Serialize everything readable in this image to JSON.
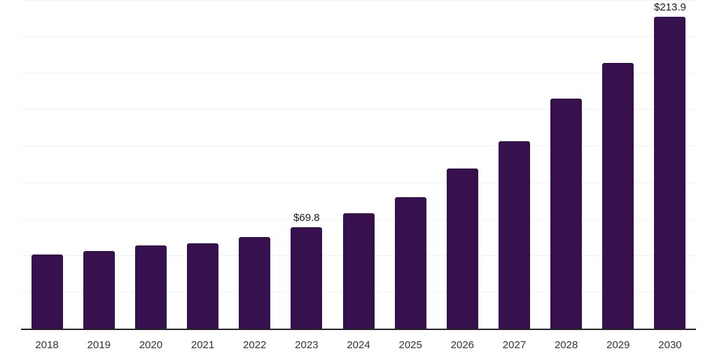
{
  "chart_data": {
    "type": "bar",
    "title": "",
    "xlabel": "",
    "ylabel": "",
    "categories": [
      "2018",
      "2019",
      "2020",
      "2021",
      "2022",
      "2023",
      "2024",
      "2025",
      "2026",
      "2027",
      "2028",
      "2029",
      "2030"
    ],
    "values": [
      50.7,
      53.4,
      57.1,
      58.7,
      63.0,
      69.8,
      79.3,
      90.4,
      109.8,
      128.8,
      157.8,
      182.4,
      213.9
    ],
    "value_labels": {
      "2023": "$69.8",
      "2030": "$213.9"
    },
    "ylim": [
      0,
      225
    ],
    "gridline_step": 25,
    "grid": true,
    "legend_position": "none",
    "colors": {
      "bar": "#37114d",
      "gridline": "#f2f2f2",
      "axis_line": "#262626",
      "value_label": "#1a1a1a",
      "tick_label": "#333333"
    }
  }
}
